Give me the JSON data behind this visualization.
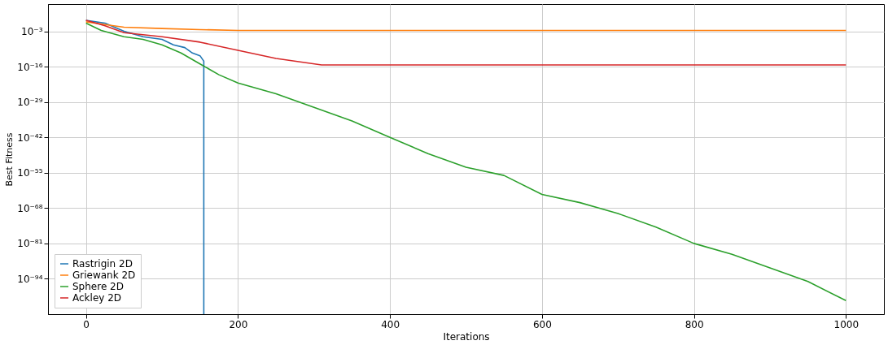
{
  "chart_data": {
    "type": "line",
    "xlabel": "Iterations",
    "ylabel": "Best Fitness",
    "log": "y",
    "grid": true,
    "legend": "bottom left",
    "xlim": [
      -50,
      1050
    ],
    "xticks": [
      0,
      200,
      400,
      600,
      800,
      1000
    ],
    "ylim": [
      1e-107,
      10000000.0
    ],
    "yticks": [
      {
        "value": 1e-94,
        "label": "10⁻⁹⁴"
      },
      {
        "value": 1e-81,
        "label": "10⁻⁸¹"
      },
      {
        "value": 1e-68,
        "label": "10⁻⁶⁸"
      },
      {
        "value": 1e-55,
        "label": "10⁻⁵⁵"
      },
      {
        "value": 1e-42,
        "label": "10⁻⁴²"
      },
      {
        "value": 1e-29,
        "label": "10⁻²⁹"
      },
      {
        "value": 1e-16,
        "label": "10⁻¹⁶"
      },
      {
        "value": 0.001,
        "label": "10⁻³"
      }
    ],
    "series": [
      {
        "name": "Rastrigin 2D",
        "color": "#1f77b4",
        "x": [
          0,
          25,
          50,
          75,
          100,
          115,
          130,
          140,
          150,
          155,
          155
        ],
        "values": [
          10,
          1,
          0.001,
          1e-05,
          1e-06,
          1e-08,
          1e-09,
          1e-11,
          1e-12,
          1e-14,
          1e-107
        ]
      },
      {
        "name": "Griewank 2D",
        "color": "#ff7f0e",
        "x": [
          0,
          25,
          50,
          100,
          150,
          200,
          1000
        ],
        "values": [
          3,
          0.3,
          0.03,
          0.01,
          0.004,
          0.002,
          0.002
        ]
      },
      {
        "name": "Sphere 2D",
        "color": "#2ca02c",
        "x": [
          0,
          20,
          50,
          75,
          100,
          125,
          150,
          175,
          200,
          250,
          300,
          350,
          400,
          450,
          500,
          550,
          600,
          650,
          700,
          750,
          800,
          850,
          900,
          950,
          1000
        ],
        "values": [
          1,
          0.002,
          1e-05,
          1e-06,
          1e-08,
          1e-11,
          1e-15,
          1e-19,
          1e-22,
          1e-26,
          1e-31,
          1e-36,
          1e-42,
          1e-48,
          1e-53,
          1e-56,
          1e-63,
          1e-66,
          1e-70,
          1e-75,
          1e-81,
          1e-85,
          1e-90,
          1e-95,
          1e-102
        ]
      },
      {
        "name": "Ackley 2D",
        "color": "#d62728",
        "x": [
          0,
          25,
          50,
          100,
          150,
          200,
          250,
          310,
          1000
        ],
        "values": [
          10,
          0.1,
          0.0003,
          1e-05,
          1e-07,
          1e-10,
          1e-13,
          4e-16,
          4e-16
        ]
      }
    ]
  }
}
